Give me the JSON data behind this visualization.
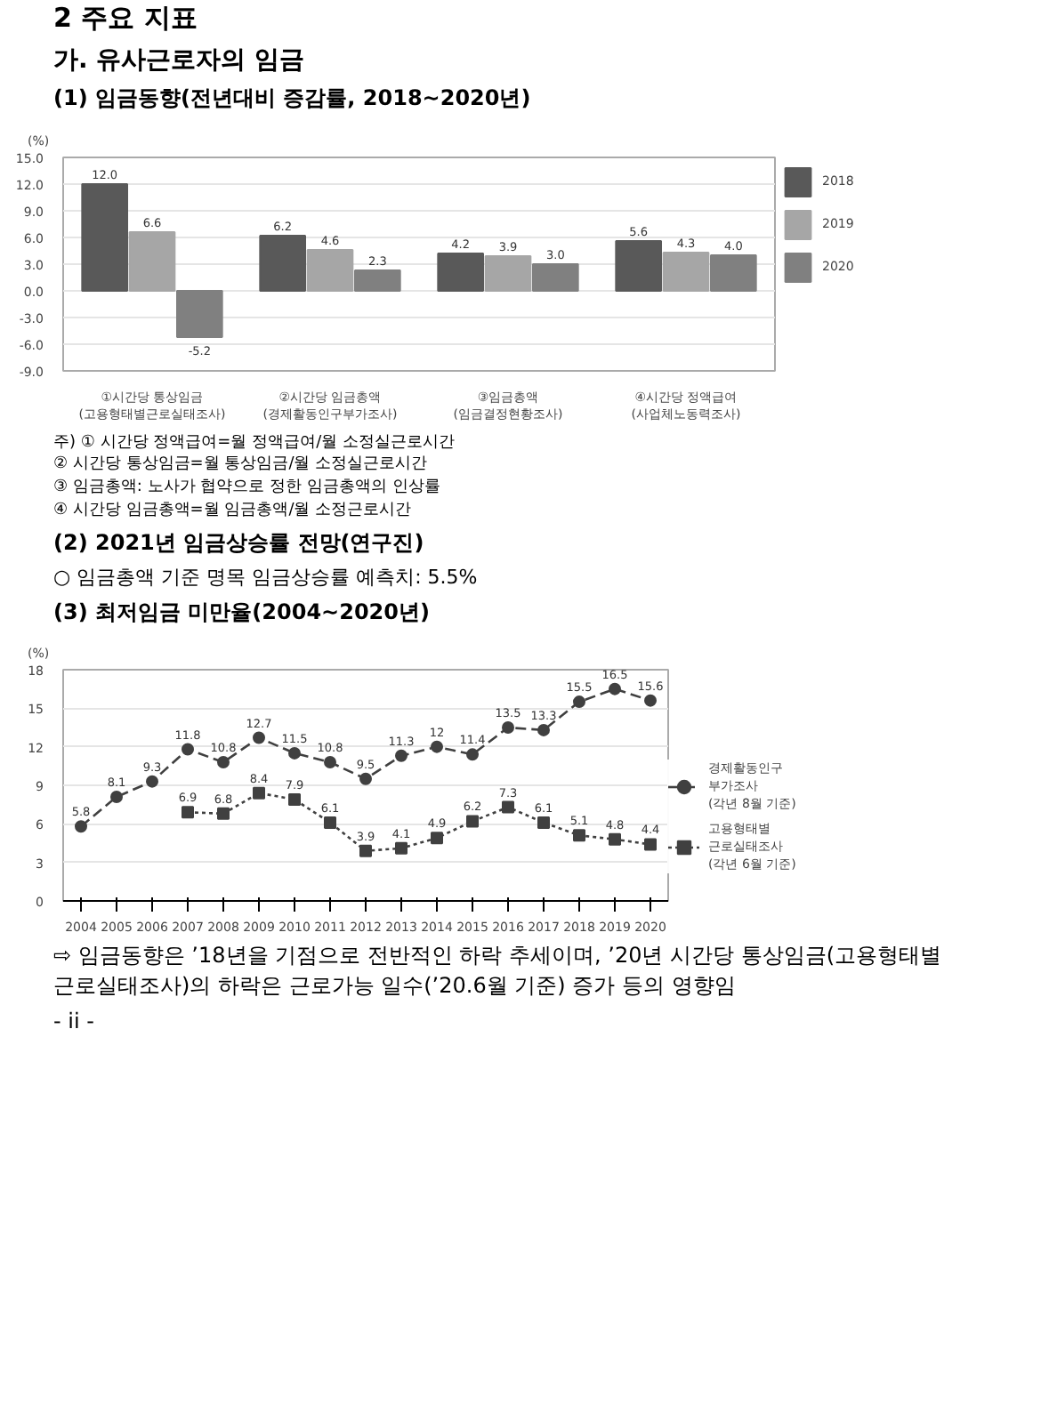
{
  "chart_data": [
    {
      "type": "bar",
      "title": "(1) 임금동향(전년대비 증감률, 2018~2020년)",
      "ylabel": "(%)",
      "annotations": [
        "2 주요 지표",
        "가. 유사근로자의 임금",
        "주) ① 시간당 정액급여=월 정액급여/월 소정실근로시간",
        "② 시간당 통상임금=월 통상임금/월 소정실근로시간",
        "③ 임금총액: 노사가 협약으로 정한 임금총액의 인상률",
        "④ 시간당 임금총액=월 임금총액/월 소정근로시간",
        "(2) 2021년 임금상승률 전망(연구진)",
        "○ 임금총액 기준 명목 임금상승률 예측치: 5.5%"
      ],
      "categories": [
        "①시간당 통상임금\n(고용형태별근로실태조사)",
        "②시간당 임금총액\n(경제활동인구부가조사)",
        "③임금총액\n(임금결정현황조사)",
        "④시간당 정액급여\n(사업체노동력조사)"
      ],
      "series": [
        {
          "name": "2018",
          "color": "#595959",
          "values": [
            12.0,
            6.2,
            4.2,
            5.6
          ],
          "value_labels": [
            "12.0",
            "6.2",
            "4.2",
            "5.6"
          ]
        },
        {
          "name": "2019",
          "color": "#a6a6a6",
          "values": [
            6.6,
            4.6,
            3.9,
            4.3
          ],
          "value_labels": [
            "6.6",
            "4.6",
            "3.9",
            "4.3"
          ]
        },
        {
          "name": "2020",
          "color": "#808080",
          "values": [
            -5.2,
            2.3,
            3.0,
            4.0
          ],
          "value_labels": [
            "-5.2",
            "2.3",
            "3.0",
            "4.0"
          ]
        }
      ],
      "ylim": [
        -9,
        15
      ],
      "yticks": [
        {
          "value": -9,
          "label": "-9.0"
        },
        {
          "value": -6,
          "label": "-6.0"
        },
        {
          "value": -3,
          "label": "-3.0"
        },
        {
          "value": 0,
          "label": "0.0"
        },
        {
          "value": 3,
          "label": "3.0"
        },
        {
          "value": 6,
          "label": "6.0"
        },
        {
          "value": 9,
          "label": "9.0"
        },
        {
          "value": 12,
          "label": "12.0"
        },
        {
          "value": 15,
          "label": "15.0"
        }
      ],
      "grid": "y",
      "legend": "top right"
    },
    {
      "type": "line",
      "title": "(3) 최저임금 미만율(2004~2020년)",
      "ylabel": "(%)",
      "annotations": [
        "⇨ 임금동향은 ’18년을 기점으로 전반적인 하락 추세이며, ’20년 시간당 통상임금(고용형태별근로실태조사)의 하락은 근로가능 일수(’20.6월 기준) 증가 등의 영향임",
        "- ii -"
      ],
      "categories": [
        "2004",
        "2005",
        "2006",
        "2007",
        "2008",
        "2009",
        "2010",
        "2011",
        "2012",
        "2013",
        "2014",
        "2015",
        "2016",
        "2017",
        "2018",
        "2019",
        "2020"
      ],
      "series": [
        {
          "name": "경제활동인구\n부가조사\n(각년 8월 기준)",
          "color": "#404040",
          "marker": "circle",
          "line_style": "dashed",
          "values": [
            5.8,
            8.1,
            9.3,
            11.8,
            10.8,
            12.7,
            11.5,
            10.8,
            9.5,
            11.3,
            12,
            11.4,
            13.5,
            13.3,
            15.5,
            16.5,
            15.6
          ]
        },
        {
          "name": "고용형태별\n근로실태조사\n(각년 6월 기준)",
          "color": "#404040",
          "marker": "square",
          "line_style": "dotted",
          "values": [
            null,
            null,
            null,
            6.9,
            6.8,
            8.4,
            7.9,
            6.1,
            3.9,
            4.1,
            4.9,
            6.2,
            7.3,
            6.1,
            5.1,
            4.8,
            4.4
          ]
        }
      ],
      "ylim": [
        0,
        18
      ],
      "yticks": [
        0,
        3,
        6,
        9,
        12,
        15,
        18
      ],
      "data_labels": true,
      "grid": "y",
      "legend": "right"
    }
  ]
}
